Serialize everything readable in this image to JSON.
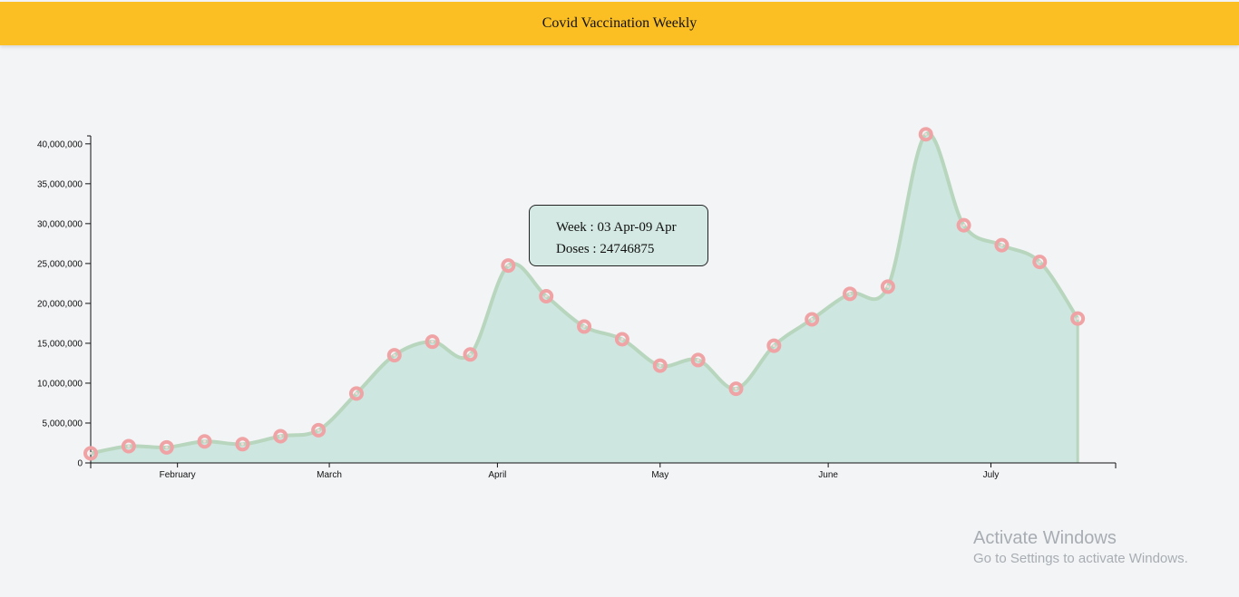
{
  "header": {
    "title": "Covid Vaccination Weekly"
  },
  "colors": {
    "header_bg": "#fbbf24",
    "area_fill": "#cde6e0",
    "line": "#b7d6bd",
    "point": "#f0a3a5",
    "tooltip_bg": "#d2e8e2"
  },
  "tooltip": {
    "week_label": "Week : 03 Apr-09 Apr",
    "doses_label": "Doses : 24746875"
  },
  "watermark": {
    "title": "Activate Windows",
    "subtitle": "Go to Settings to activate Windows."
  },
  "chart_data": {
    "type": "area",
    "title": "",
    "xlabel": "",
    "ylabel": "",
    "x_axis_type": "date",
    "x_domain": [
      "2021-01-16",
      "2021-07-24"
    ],
    "x_ticks": [
      {
        "date": "2021-02-01",
        "label": "February"
      },
      {
        "date": "2021-03-01",
        "label": "March"
      },
      {
        "date": "2021-04-01",
        "label": "April"
      },
      {
        "date": "2021-05-01",
        "label": "May"
      },
      {
        "date": "2021-06-01",
        "label": "June"
      },
      {
        "date": "2021-07-01",
        "label": "July"
      }
    ],
    "ylim": [
      0,
      41000000
    ],
    "y_ticks": [
      0,
      5000000,
      10000000,
      15000000,
      20000000,
      25000000,
      30000000,
      35000000,
      40000000
    ],
    "y_tick_labels": [
      "0",
      "5,000,000",
      "10,000,000",
      "15,000,000",
      "20,000,000",
      "25,000,000",
      "30,000,000",
      "35,000,000",
      "40,000,000"
    ],
    "grid": false,
    "curve": "smooth",
    "series": [
      {
        "values": [
          {
            "x": "2021-01-16",
            "y": 1200000
          },
          {
            "x": "2021-01-23",
            "y": 2100000
          },
          {
            "x": "2021-01-30",
            "y": 1950000
          },
          {
            "x": "2021-02-06",
            "y": 2700000
          },
          {
            "x": "2021-02-13",
            "y": 2350000
          },
          {
            "x": "2021-02-20",
            "y": 3350000
          },
          {
            "x": "2021-02-27",
            "y": 4100000
          },
          {
            "x": "2021-03-06",
            "y": 8700000
          },
          {
            "x": "2021-03-13",
            "y": 13500000
          },
          {
            "x": "2021-03-20",
            "y": 15200000
          },
          {
            "x": "2021-03-27",
            "y": 13600000
          },
          {
            "x": "2021-04-03",
            "y": 24746875
          },
          {
            "x": "2021-04-10",
            "y": 20900000
          },
          {
            "x": "2021-04-17",
            "y": 17100000
          },
          {
            "x": "2021-04-24",
            "y": 15500000
          },
          {
            "x": "2021-05-01",
            "y": 12200000
          },
          {
            "x": "2021-05-08",
            "y": 12900000
          },
          {
            "x": "2021-05-15",
            "y": 9300000
          },
          {
            "x": "2021-05-22",
            "y": 14700000
          },
          {
            "x": "2021-05-29",
            "y": 18000000
          },
          {
            "x": "2021-06-05",
            "y": 21200000
          },
          {
            "x": "2021-06-12",
            "y": 22100000
          },
          {
            "x": "2021-06-19",
            "y": 41200000
          },
          {
            "x": "2021-06-26",
            "y": 29800000
          },
          {
            "x": "2021-07-03",
            "y": 27300000
          },
          {
            "x": "2021-07-10",
            "y": 25200000
          },
          {
            "x": "2021-07-17",
            "y": 18100000
          }
        ]
      }
    ]
  }
}
